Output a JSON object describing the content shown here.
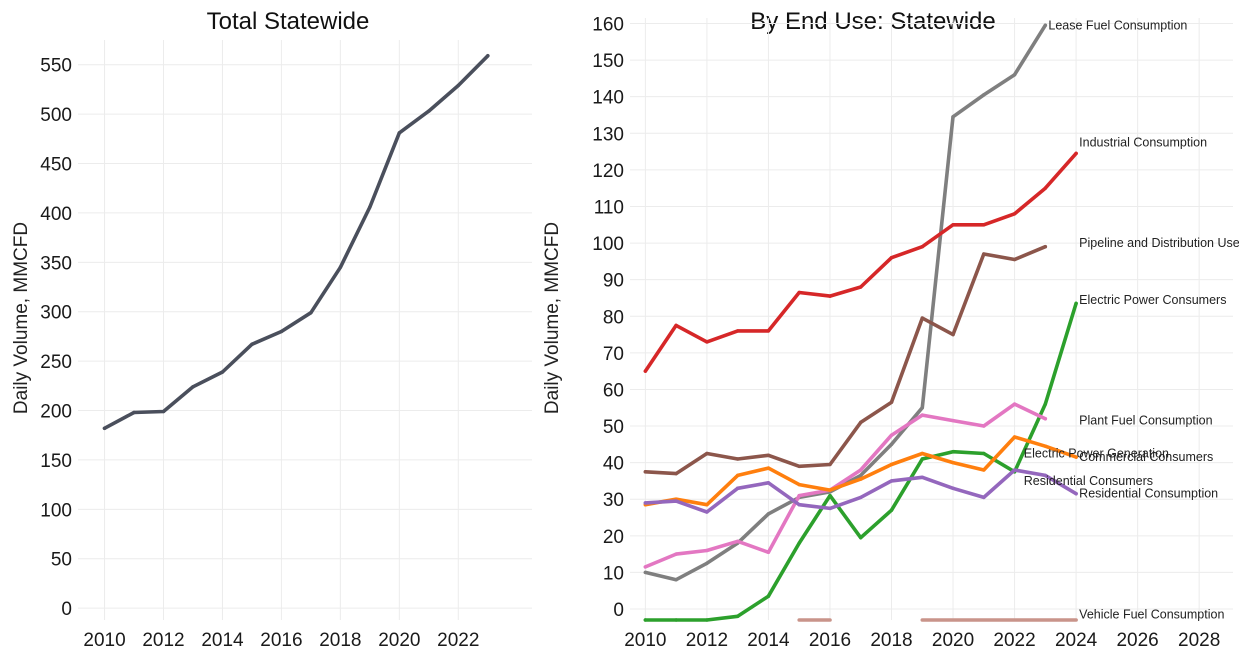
{
  "chart_data": [
    {
      "type": "line",
      "title": "Total Statewide",
      "ylabel": "Daily Volume, MMCFD",
      "xlabel": "",
      "xlim": [
        2009.1,
        2024.5
      ],
      "ylim": [
        -12,
        575
      ],
      "xticks": [
        2010,
        2012,
        2014,
        2016,
        2018,
        2020,
        2022
      ],
      "yticks": [
        0,
        50,
        100,
        150,
        200,
        250,
        300,
        350,
        400,
        450,
        500,
        550
      ],
      "grid": true,
      "series": [
        {
          "color": "#4a4f5c",
          "x": [
            2010,
            2011,
            2012,
            2013,
            2014,
            2015,
            2016,
            2017,
            2018,
            2019,
            2020,
            2021,
            2022,
            2023
          ],
          "y": [
            182,
            198,
            199,
            224,
            239,
            267,
            280,
            299,
            345,
            406,
            481,
            503,
            529,
            559
          ]
        }
      ]
    },
    {
      "type": "line",
      "title": "By End Use: Statewide",
      "ylabel": "Daily Volume, MMCFD",
      "xlabel": "",
      "xlim": [
        2009.5,
        2029.1
      ],
      "ylim": [
        -3,
        161.5
      ],
      "xticks": [
        2010,
        2012,
        2014,
        2016,
        2018,
        2020,
        2022,
        2024,
        2026,
        2028
      ],
      "yticks": [
        0,
        10,
        20,
        30,
        40,
        50,
        60,
        70,
        80,
        90,
        100,
        110,
        120,
        130,
        140,
        150,
        160
      ],
      "grid": true,
      "series": [
        {
          "name": "Lease Fuel Consumption",
          "color": "#7f7f7f",
          "x": [
            2010,
            2011,
            2012,
            2013,
            2014,
            2015,
            2016,
            2017,
            2018,
            2019,
            2020,
            2021,
            2022,
            2023
          ],
          "y": [
            10,
            8,
            12.5,
            18,
            26,
            30.5,
            32,
            36.5,
            45,
            55,
            134.5,
            140.5,
            146,
            159.5
          ]
        },
        {
          "name": "Industrial Consumption",
          "color": "#d62728",
          "x": [
            2010,
            2011,
            2012,
            2013,
            2014,
            2015,
            2016,
            2017,
            2018,
            2019,
            2020,
            2021,
            2022,
            2023,
            2024
          ],
          "y": [
            65,
            77.5,
            73,
            76,
            76,
            86.5,
            85.5,
            88,
            96,
            99,
            105,
            105,
            108,
            115,
            124.5
          ]
        },
        {
          "name": "Pipeline and Distribution Use",
          "color": "#8c564b",
          "x": [
            2010,
            2011,
            2012,
            2013,
            2014,
            2015,
            2016,
            2017,
            2018,
            2019,
            2020,
            2021,
            2022,
            2023
          ],
          "y": [
            37.5,
            37,
            42.5,
            41,
            42,
            39,
            39.5,
            51,
            56.5,
            79.5,
            75,
            97,
            95.5,
            99
          ]
        },
        {
          "name": "Electric Power Consumers",
          "color": "#2ca02c",
          "x": [
            2010,
            2011,
            2012,
            2013,
            2014,
            2015,
            2016,
            2017,
            2018,
            2019,
            2020,
            2021,
            2022,
            2023,
            2024
          ],
          "y": [
            -3,
            -3,
            -3,
            -2,
            3.5,
            18,
            31,
            19.5,
            27,
            41,
            43,
            42.5,
            37.5,
            56,
            83.5
          ]
        },
        {
          "name": "Plant Fuel Consumption",
          "color": "#e377c2",
          "x": [
            2010,
            2011,
            2012,
            2013,
            2014,
            2015,
            2016,
            2017,
            2018,
            2019,
            2020,
            2021,
            2022,
            2023
          ],
          "y": [
            11.5,
            15,
            16,
            18.5,
            15.5,
            31,
            32.5,
            38,
            47.5,
            53,
            51.5,
            50,
            56,
            52
          ]
        },
        {
          "name": "Commercial Consumers",
          "color": "#ff7f0e",
          "x": [
            2010,
            2011,
            2012,
            2013,
            2014,
            2015,
            2016,
            2017,
            2018,
            2019,
            2020,
            2021,
            2022,
            2023,
            2024
          ],
          "y": [
            28.5,
            30,
            28.5,
            36.5,
            38.5,
            34,
            32.5,
            35.5,
            39.5,
            42.5,
            40,
            38,
            47,
            44.5,
            41.5
          ]
        },
        {
          "name": "Residential Consumption",
          "color": "#9467bd",
          "x": [
            2010,
            2011,
            2012,
            2013,
            2014,
            2015,
            2016,
            2017,
            2018,
            2019,
            2020,
            2021,
            2022,
            2023,
            2024
          ],
          "y": [
            29,
            29.5,
            26.5,
            33,
            34.5,
            28.5,
            27.5,
            30.5,
            35,
            36,
            33,
            30.5,
            38,
            36.5,
            31.5
          ]
        },
        {
          "name": "Vehicle Fuel Consumption",
          "color": "#c9948a",
          "segments": [
            {
              "x": [
                2015,
                2016
              ],
              "y": [
                -3,
                -3
              ]
            },
            {
              "x": [
                2019,
                2024
              ],
              "y": [
                -3,
                -3
              ]
            }
          ]
        }
      ],
      "annotations": [
        {
          "text": "Lease Fuel Consumption",
          "x": 2023.1,
          "y": 159.5
        },
        {
          "text": "Industrial Consumption",
          "x": 2024.1,
          "y": 127.5
        },
        {
          "text": "Pipeline and Distribution Use",
          "x": 2024.1,
          "y": 100
        },
        {
          "text": "Electric Power Consumers",
          "x": 2024.1,
          "y": 84.5
        },
        {
          "text": "Plant Fuel Consumption",
          "x": 2024.1,
          "y": 51.5
        },
        {
          "text": "Commercial Consumers",
          "x": 2024.1,
          "y": 41.5
        },
        {
          "text": "Electric Power Generation",
          "x": 2022.3,
          "y": 42.5
        },
        {
          "text": "Residential Consumers",
          "x": 2022.3,
          "y": 35
        },
        {
          "text": "Residential Consumption",
          "x": 2024.1,
          "y": 31.5
        },
        {
          "text": "Vehicle Fuel Consumption",
          "x": 2024.1,
          "y": -1.5
        }
      ]
    }
  ]
}
